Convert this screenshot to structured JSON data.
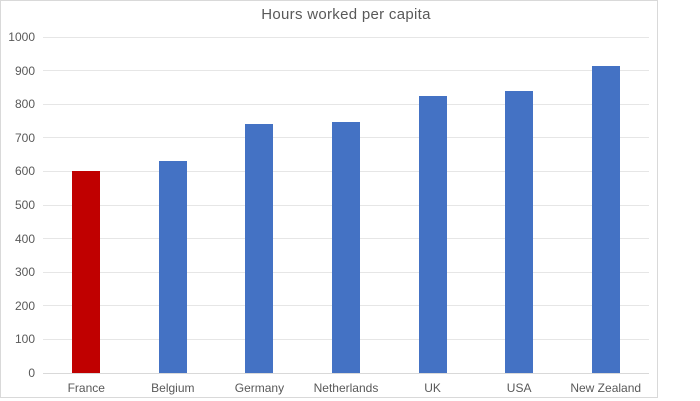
{
  "chart_data": {
    "type": "bar",
    "title": "Hours worked per capita",
    "categories": [
      "France",
      "Belgium",
      "Germany",
      "Netherlands",
      "UK",
      "USA",
      "New Zealand"
    ],
    "values": [
      600,
      630,
      740,
      748,
      824,
      840,
      914
    ],
    "bar_colors": [
      "#C00000",
      "#4472C4",
      "#4472C4",
      "#4472C4",
      "#4472C4",
      "#4472C4",
      "#4472C4"
    ],
    "default_bar_color": "#4472C4",
    "highlight_category": "France",
    "highlight_color": "#C00000",
    "xlabel": "",
    "ylabel": "",
    "ylim": [
      0,
      1000
    ],
    "ytick_step": 100,
    "yticks": [
      0,
      100,
      200,
      300,
      400,
      500,
      600,
      700,
      800,
      900,
      1000
    ],
    "grid": "horizontal",
    "legend": "none",
    "colors": {
      "text": "#595959",
      "gridline": "#E6E6E6",
      "axis_line": "#D9D9D9",
      "chart_border": "#D9D9D9",
      "background": "#FFFFFF"
    }
  }
}
